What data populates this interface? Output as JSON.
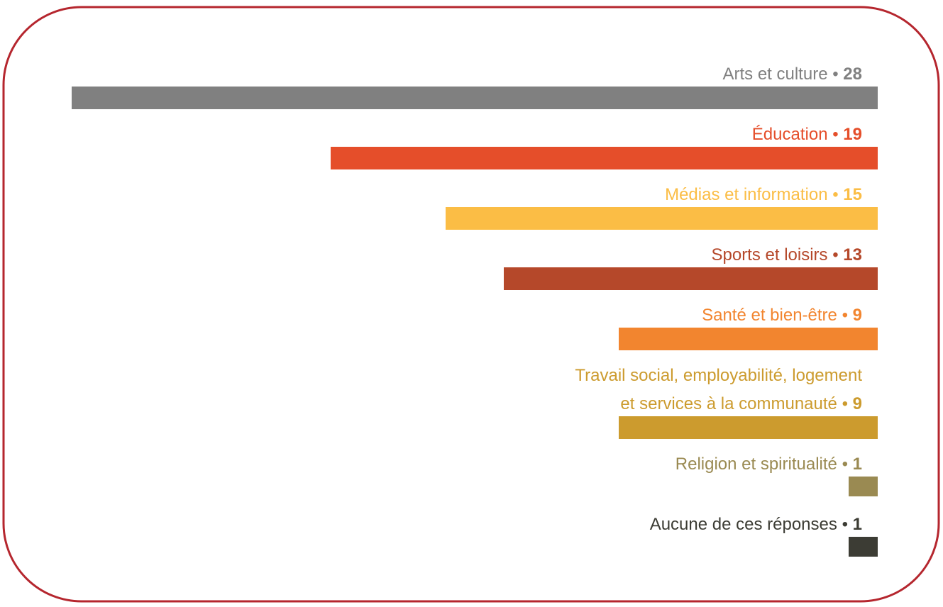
{
  "chart_data": {
    "type": "bar",
    "orientation": "horizontal",
    "categories": [
      "Arts et culture",
      "Éducation",
      "Médias et information",
      "Sports et loisirs",
      "Santé et bien-être",
      "Travail social, employabilité, logement\net services à la communauté",
      "Religion et spiritualité",
      "Aucune de ces réponses"
    ],
    "values": [
      28,
      19,
      15,
      13,
      9,
      9,
      1,
      1
    ],
    "colors": [
      "#808080",
      "#e54e2a",
      "#fbbd45",
      "#b5482a",
      "#f2852f",
      "#cc9b2e",
      "#9a8a52",
      "#3c3c34"
    ],
    "separator": "•"
  }
}
